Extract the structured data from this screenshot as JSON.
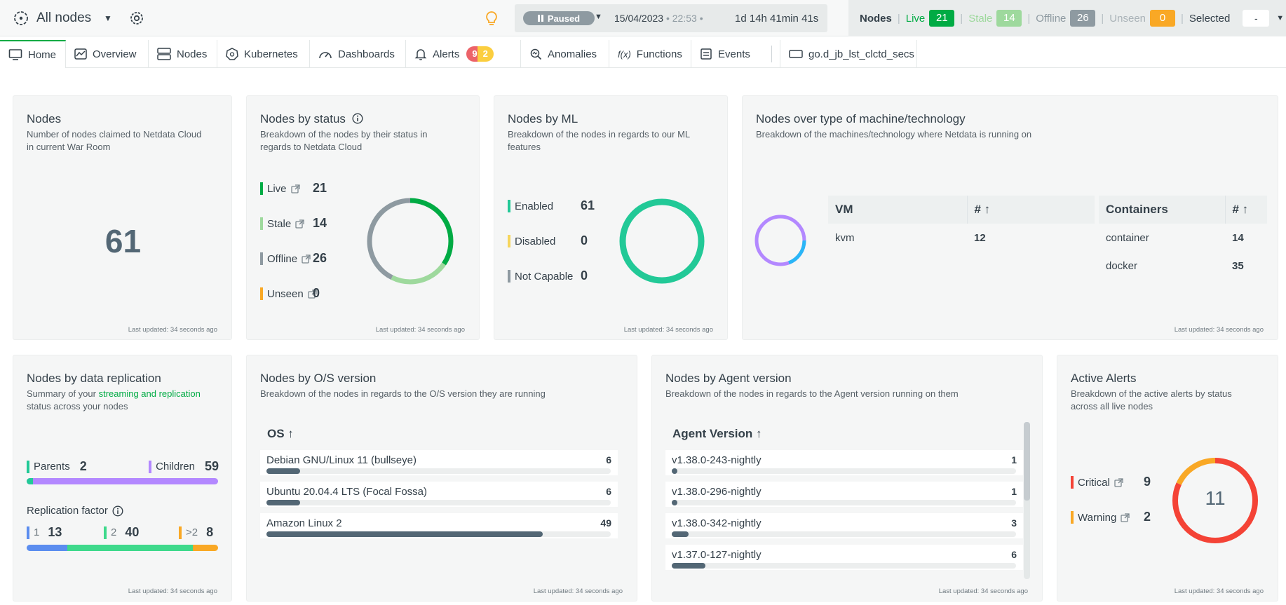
{
  "topbar": {
    "room_name": "All nodes",
    "playback": {
      "state_label": "Paused",
      "date": "15/04/2023",
      "time": "22:53",
      "separator": "•",
      "duration": "1d 14h 41min 41s"
    },
    "nodes_status": {
      "label": "Nodes",
      "live_label": "Live",
      "live_count": "21",
      "stale_label": "Stale",
      "stale_count": "14",
      "offline_label": "Offline",
      "offline_count": "26",
      "unseen_label": "Unseen",
      "unseen_count": "0",
      "selected_label": "Selected",
      "selected_value": "-"
    }
  },
  "tabs": [
    {
      "label": "Home",
      "icon": "monitor-icon"
    },
    {
      "label": "Overview",
      "icon": "overview-icon"
    },
    {
      "label": "Nodes",
      "icon": "nodes-icon"
    },
    {
      "label": "Kubernetes",
      "icon": "kubernetes-icon"
    },
    {
      "label": "Dashboards",
      "icon": "dashboard-icon"
    },
    {
      "label": "Alerts",
      "icon": "bell-icon",
      "critical": "9",
      "warning": "2"
    },
    {
      "label": "Anomalies",
      "icon": "anomalies-icon"
    },
    {
      "label": "Functions",
      "icon": "functions-icon"
    },
    {
      "label": "Events",
      "icon": "events-icon"
    },
    {
      "label": "go.d_jb_lst_clctd_secs",
      "icon": "chart-tab-icon"
    }
  ],
  "last_updated": "Last updated: 34 seconds ago",
  "cards": {
    "nodes": {
      "title": "Nodes",
      "subtitle_1": "Number of nodes claimed to Netdata Cloud",
      "subtitle_2": "in current War Room",
      "count": "61"
    },
    "status": {
      "title": "Nodes by status",
      "subtitle_1": "Breakdown of the nodes by their status in",
      "subtitle_2": "regards to Netdata Cloud",
      "items": [
        {
          "label": "Live",
          "value": "21",
          "color": "#00ab44"
        },
        {
          "label": "Stale",
          "value": "14",
          "color": "#9ed99d"
        },
        {
          "label": "Offline",
          "value": "26",
          "color": "#8e9aa1"
        },
        {
          "label": "Unseen",
          "value": "0",
          "color": "#f9a825"
        }
      ]
    },
    "ml": {
      "title": "Nodes by ML",
      "subtitle_1": "Breakdown of the nodes in regards to our ML",
      "subtitle_2": "features",
      "items": [
        {
          "label": "Enabled",
          "value": "61",
          "color": "#22c997"
        },
        {
          "label": "Disabled",
          "value": "0",
          "color": "#f6d55c"
        },
        {
          "label": "Not Capable",
          "value": "0",
          "color": "#8e9aa1"
        }
      ]
    },
    "tech": {
      "title": "Nodes over type of machine/technology",
      "subtitle": "Breakdown of the machines/technology where Netdata is running on",
      "vm": {
        "header": "VM",
        "count_header": "# ↑",
        "rows": [
          {
            "name": "kvm",
            "value": "12"
          }
        ]
      },
      "containers": {
        "header": "Containers",
        "count_header": "# ↑",
        "rows": [
          {
            "name": "container",
            "value": "14"
          },
          {
            "name": "docker",
            "value": "35"
          }
        ]
      }
    },
    "replication": {
      "title": "Nodes by data replication",
      "subtitle_1": "Summary of your",
      "subtitle_link": "streaming and replication",
      "subtitle_2": "status across your nodes",
      "parents_label": "Parents",
      "parents_value": "2",
      "children_label": "Children",
      "children_value": "59",
      "factor_label": "Replication factor",
      "factors": [
        {
          "label": "1",
          "value": "13",
          "color": "#5b8def"
        },
        {
          "label": "2",
          "value": "40",
          "color": "#3ed98b"
        },
        {
          "label": ">2",
          "value": "8",
          "color": "#f9a825"
        }
      ]
    },
    "os": {
      "title": "Nodes by O/S version",
      "subtitle": "Breakdown of the nodes in regards to the O/S version they are running",
      "header": "OS ↑",
      "rows": [
        {
          "label": "Debian GNU/Linux 11 (bullseye)",
          "value": "6"
        },
        {
          "label": "Ubuntu 20.04.4 LTS (Focal Fossa)",
          "value": "6"
        },
        {
          "label": "Amazon Linux 2",
          "value": "49"
        }
      ]
    },
    "agent": {
      "title": "Nodes by Agent version",
      "subtitle": "Breakdown of the nodes in regards to the Agent version running on them",
      "header": "Agent Version ↑",
      "rows": [
        {
          "label": "v1.38.0-243-nightly",
          "value": "1"
        },
        {
          "label": "v1.38.0-296-nightly",
          "value": "1"
        },
        {
          "label": "v1.38.0-342-nightly",
          "value": "3"
        },
        {
          "label": "v1.37.0-127-nightly",
          "value": "6"
        }
      ]
    },
    "alerts": {
      "title": "Active Alerts",
      "subtitle_1": "Breakdown of the active alerts by status",
      "subtitle_2": "across all live nodes",
      "total": "11",
      "items": [
        {
          "label": "Critical",
          "value": "9",
          "color": "#f44336"
        },
        {
          "label": "Warning",
          "value": "2",
          "color": "#f9a825"
        }
      ]
    }
  },
  "colors": {
    "accent_green": "#00ab44",
    "brand_text": "#35414a"
  }
}
